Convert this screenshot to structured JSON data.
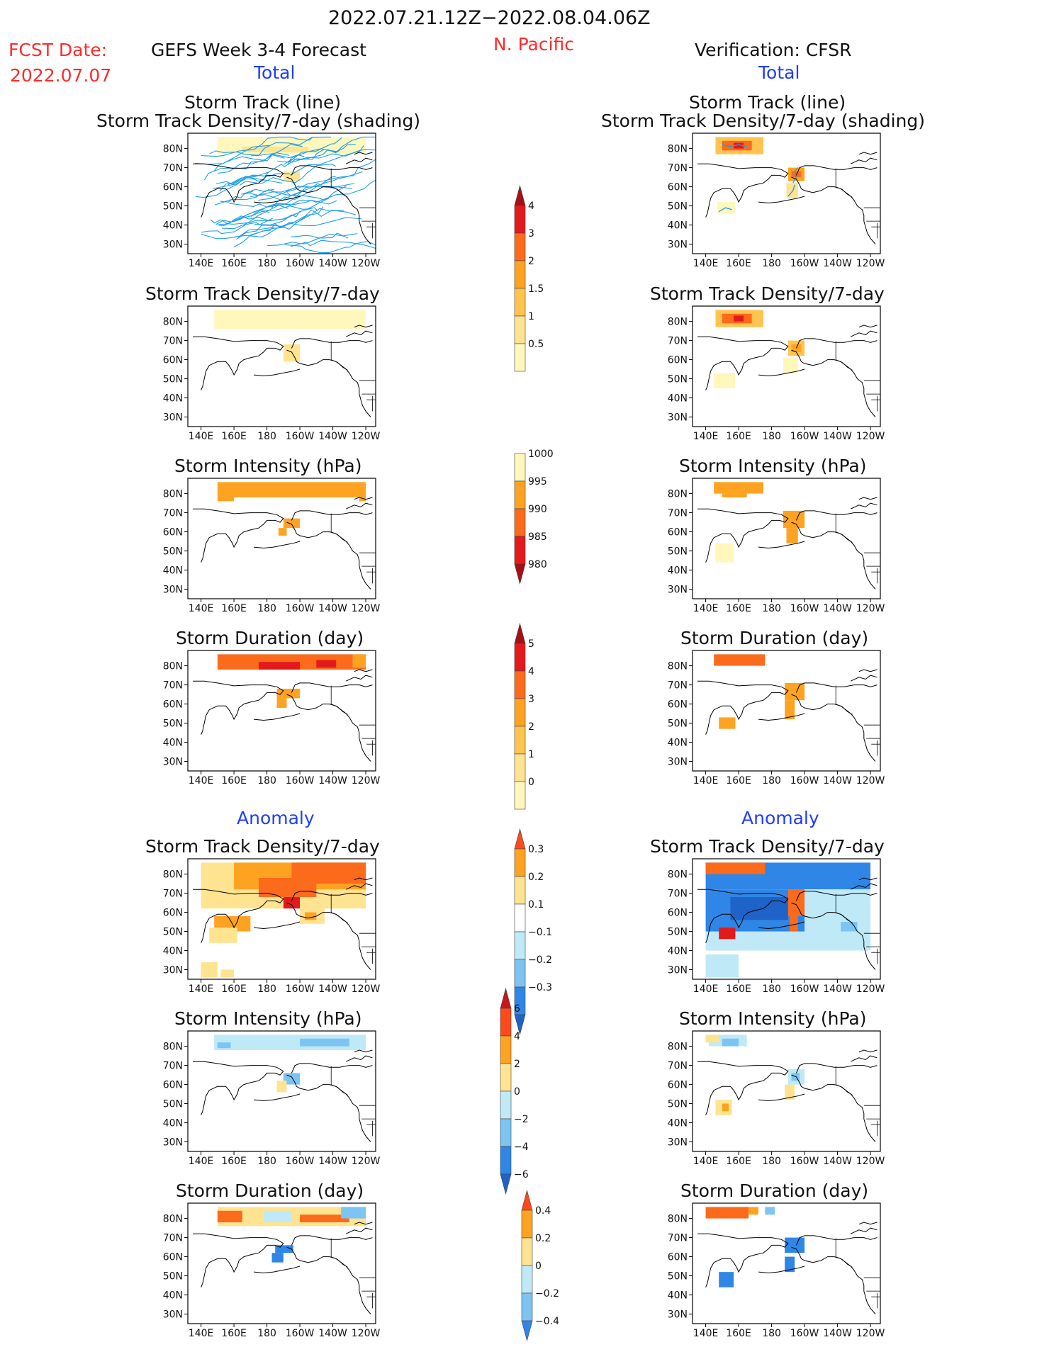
{
  "header": {
    "date_range": "2022.07.21.12Z−2022.08.04.06Z",
    "fcst_label": "FCST Date:",
    "fcst_date": "2022.07.07",
    "forecast_title": "GEFS Week 3-4 Forecast",
    "region": "N. Pacific",
    "verification": "Verification: CFSR",
    "total_left": "Total",
    "total_right": "Total",
    "anomaly_left": "Anomaly",
    "anomaly_right": "Anomaly"
  },
  "axes": {
    "x_ticks": [
      "140E",
      "160E",
      "180",
      "160W",
      "140W",
      "120W"
    ],
    "y_ticks": [
      "80N",
      "70N",
      "60N",
      "50N",
      "40N",
      "30N"
    ]
  },
  "panels": {
    "fc_track": {
      "title1": "Storm Track (line)",
      "title2": "Storm Track Density/7-day (shading)"
    },
    "obs_track": {
      "title1": "Storm Track (line)",
      "title2": "Storm Track Density/7-day (shading)"
    },
    "fc_density": {
      "title": "Storm Track Density/7-day"
    },
    "obs_density": {
      "title": "Storm Track Density/7-day"
    },
    "fc_intensity": {
      "title": "Storm Intensity (hPa)"
    },
    "obs_intensity": {
      "title": "Storm Intensity (hPa)"
    },
    "fc_duration": {
      "title": "Storm Duration (day)"
    },
    "obs_duration": {
      "title": "Storm Duration (day)"
    },
    "fc_anom_density": {
      "title": "Storm Track Density/7-day"
    },
    "obs_anom_density": {
      "title": "Storm Track Density/7-day"
    },
    "fc_anom_intensity": {
      "title": "Storm Intensity (hPa)"
    },
    "obs_anom_intensity": {
      "title": "Storm Intensity (hPa)"
    },
    "fc_anom_duration": {
      "title": "Storm Duration (day)"
    },
    "obs_anom_duration": {
      "title": "Storm Duration (day)"
    }
  },
  "colorbars": [
    {
      "name": "density",
      "labels": [
        "4",
        "3",
        "2",
        "1.5",
        "1",
        "0.5"
      ],
      "colors": [
        "#a50f15",
        "#e31a1c",
        "#fc6a1c",
        "#fea321",
        "#fec44f",
        "#fee391",
        "#fff7bc"
      ],
      "tri": "top"
    },
    {
      "name": "intensity",
      "labels": [
        "1000",
        "995",
        "990",
        "985",
        "980"
      ],
      "colors": [
        "#fff7bc",
        "#fea321",
        "#fc6a1c",
        "#e31a1c",
        "#a50f15"
      ],
      "tri": "bottom"
    },
    {
      "name": "duration",
      "labels": [
        "5",
        "4",
        "3",
        "2",
        "1",
        "0"
      ],
      "colors": [
        "#a50f15",
        "#e31a1c",
        "#fc6a1c",
        "#fea321",
        "#fec44f",
        "#fee391",
        "#fff7bc"
      ],
      "tri": "top"
    },
    {
      "name": "anom_density",
      "labels": [
        "0.3",
        "0.2",
        "0.1",
        "−0.1",
        "−0.2",
        "−0.3"
      ],
      "colors": [
        "#fc4a1c",
        "#fea321",
        "#fee391",
        "#ffffff",
        "#bfe9f7",
        "#7cc4f2",
        "#2f86e6",
        "#1f62c8"
      ],
      "tri": "both"
    },
    {
      "name": "anom_intensity",
      "labels": [
        "6",
        "4",
        "2",
        "0",
        "−2",
        "−4",
        "−6"
      ],
      "colors": [
        "#c8171c",
        "#fc4a1c",
        "#fea321",
        "#fee391",
        "#bfe9f7",
        "#7cc4f2",
        "#2f86e6",
        "#1f62c8"
      ],
      "tri": "both"
    },
    {
      "name": "anom_duration",
      "labels": [
        "0.4",
        "0.2",
        "0",
        "−0.2",
        "−0.4"
      ],
      "colors": [
        "#fc4a1c",
        "#fea321",
        "#fee391",
        "#bfe9f7",
        "#7cc4f2",
        "#2f86e6"
      ],
      "tri": "both"
    }
  ],
  "palette": {
    "track_line": "#1e9ee8",
    "yellow_light": "#fff7bc",
    "yellow": "#fee391",
    "orange_light": "#fec44f",
    "orange": "#fea321",
    "orange_dark": "#fc6a1c",
    "red": "#e31a1c",
    "red_dark": "#a50f15",
    "cyan_light": "#bfe9f7",
    "blue_light": "#7cc4f2",
    "blue": "#2f86e6",
    "blue_dark": "#1f62c8"
  }
}
